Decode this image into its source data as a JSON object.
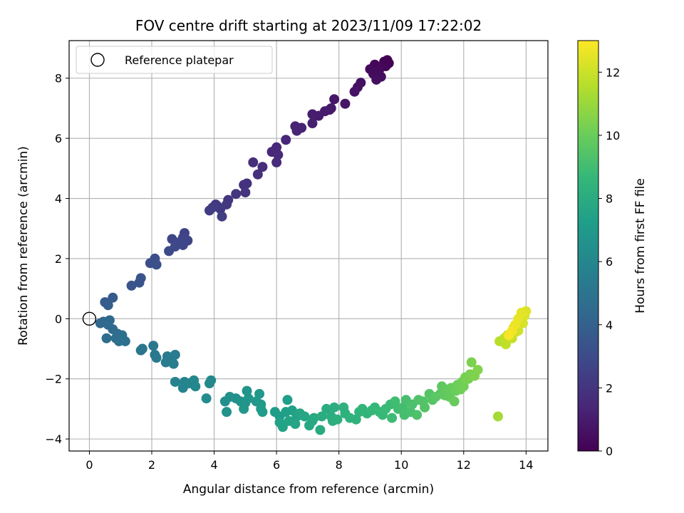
{
  "chart_data": {
    "type": "scatter",
    "title": "FOV centre drift starting at 2023/11/09 17:22:02",
    "xlabel": "Angular distance from reference (arcmin)",
    "ylabel": "Rotation from reference (arcmin)",
    "xlim": [
      -0.65,
      14.7
    ],
    "ylim": [
      -4.4,
      9.25
    ],
    "xticks": [
      0,
      2,
      4,
      6,
      8,
      10,
      12,
      14
    ],
    "yticks": [
      -4,
      -2,
      0,
      2,
      4,
      6,
      8
    ],
    "grid": true,
    "legend": {
      "placement": "top-left",
      "entries": [
        "Reference platepar"
      ]
    },
    "reference_point": {
      "x": 0,
      "y": 0
    },
    "colorbar": {
      "label": "Hours from first FF file",
      "range": [
        0,
        13
      ],
      "ticks": [
        0,
        2,
        4,
        6,
        8,
        10,
        12
      ],
      "colormap": "viridis"
    },
    "colormap_stops": [
      "#440154",
      "#482878",
      "#3e4989",
      "#31688e",
      "#26828e",
      "#1f9e89",
      "#35b779",
      "#6ece58",
      "#b5de2b",
      "#fde725"
    ],
    "points": [
      {
        "x": 9.6,
        "y": 8.5,
        "h": 0.0
      },
      {
        "x": 9.55,
        "y": 8.6,
        "h": 0.05
      },
      {
        "x": 9.45,
        "y": 8.55,
        "h": 0.1
      },
      {
        "x": 9.5,
        "y": 8.4,
        "h": 0.15
      },
      {
        "x": 9.15,
        "y": 8.45,
        "h": 0.2
      },
      {
        "x": 9.3,
        "y": 8.3,
        "h": 0.25
      },
      {
        "x": 9.0,
        "y": 8.3,
        "h": 0.3
      },
      {
        "x": 9.2,
        "y": 8.2,
        "h": 0.35
      },
      {
        "x": 9.1,
        "y": 8.15,
        "h": 0.4
      },
      {
        "x": 9.35,
        "y": 8.05,
        "h": 0.45
      },
      {
        "x": 9.2,
        "y": 7.95,
        "h": 0.5
      },
      {
        "x": 8.7,
        "y": 7.85,
        "h": 0.55
      },
      {
        "x": 8.6,
        "y": 7.7,
        "h": 0.6
      },
      {
        "x": 8.5,
        "y": 7.55,
        "h": 0.65
      },
      {
        "x": 8.2,
        "y": 7.15,
        "h": 0.75
      },
      {
        "x": 7.85,
        "y": 7.3,
        "h": 0.8
      },
      {
        "x": 7.75,
        "y": 7.0,
        "h": 0.85
      },
      {
        "x": 7.7,
        "y": 6.95,
        "h": 0.9
      },
      {
        "x": 7.55,
        "y": 6.9,
        "h": 0.95
      },
      {
        "x": 7.35,
        "y": 6.75,
        "h": 1.0
      },
      {
        "x": 7.15,
        "y": 6.8,
        "h": 1.05
      },
      {
        "x": 7.15,
        "y": 6.5,
        "h": 1.1
      },
      {
        "x": 6.8,
        "y": 6.35,
        "h": 1.2
      },
      {
        "x": 6.6,
        "y": 6.4,
        "h": 1.25
      },
      {
        "x": 6.65,
        "y": 6.25,
        "h": 1.3
      },
      {
        "x": 6.3,
        "y": 5.95,
        "h": 1.4
      },
      {
        "x": 6.0,
        "y": 5.7,
        "h": 1.45
      },
      {
        "x": 5.85,
        "y": 5.55,
        "h": 1.5
      },
      {
        "x": 6.05,
        "y": 5.45,
        "h": 1.55
      },
      {
        "x": 6.0,
        "y": 5.2,
        "h": 1.6
      },
      {
        "x": 5.55,
        "y": 5.05,
        "h": 1.65
      },
      {
        "x": 5.25,
        "y": 5.2,
        "h": 1.7
      },
      {
        "x": 5.4,
        "y": 4.8,
        "h": 1.75
      },
      {
        "x": 5.05,
        "y": 4.5,
        "h": 1.85
      },
      {
        "x": 4.95,
        "y": 4.45,
        "h": 1.9
      },
      {
        "x": 5.0,
        "y": 4.2,
        "h": 1.95
      },
      {
        "x": 4.7,
        "y": 4.15,
        "h": 2.0
      },
      {
        "x": 4.45,
        "y": 3.95,
        "h": 2.05
      },
      {
        "x": 4.4,
        "y": 3.8,
        "h": 2.1
      },
      {
        "x": 4.2,
        "y": 3.65,
        "h": 2.15
      },
      {
        "x": 4.05,
        "y": 3.8,
        "h": 2.2
      },
      {
        "x": 4.1,
        "y": 3.75,
        "h": 2.25
      },
      {
        "x": 3.95,
        "y": 3.7,
        "h": 2.3
      },
      {
        "x": 3.85,
        "y": 3.6,
        "h": 2.35
      },
      {
        "x": 4.25,
        "y": 3.4,
        "h": 2.4
      },
      {
        "x": 3.05,
        "y": 2.85,
        "h": 2.6
      },
      {
        "x": 3.0,
        "y": 2.7,
        "h": 2.65
      },
      {
        "x": 3.15,
        "y": 2.6,
        "h": 2.7
      },
      {
        "x": 2.65,
        "y": 2.65,
        "h": 2.75
      },
      {
        "x": 2.9,
        "y": 2.55,
        "h": 2.8
      },
      {
        "x": 3.0,
        "y": 2.45,
        "h": 2.85
      },
      {
        "x": 2.75,
        "y": 2.4,
        "h": 2.9
      },
      {
        "x": 2.55,
        "y": 2.25,
        "h": 2.95
      },
      {
        "x": 2.1,
        "y": 2.0,
        "h": 3.1
      },
      {
        "x": 1.95,
        "y": 1.85,
        "h": 3.15
      },
      {
        "x": 2.15,
        "y": 1.8,
        "h": 3.2
      },
      {
        "x": 1.65,
        "y": 1.35,
        "h": 3.35
      },
      {
        "x": 1.6,
        "y": 1.2,
        "h": 3.4
      },
      {
        "x": 1.35,
        "y": 1.1,
        "h": 3.45
      },
      {
        "x": 0.75,
        "y": 0.7,
        "h": 3.7
      },
      {
        "x": 0.5,
        "y": 0.55,
        "h": 3.75
      },
      {
        "x": 0.6,
        "y": 0.45,
        "h": 3.8
      },
      {
        "x": 0.35,
        "y": -0.15,
        "h": 4.3
      },
      {
        "x": 0.45,
        "y": -0.1,
        "h": 4.35
      },
      {
        "x": 0.65,
        "y": -0.05,
        "h": 4.4
      },
      {
        "x": 0.6,
        "y": -0.2,
        "h": 4.45
      },
      {
        "x": 0.75,
        "y": -0.35,
        "h": 4.5
      },
      {
        "x": 0.9,
        "y": -0.5,
        "h": 4.55
      },
      {
        "x": 0.55,
        "y": -0.65,
        "h": 4.6
      },
      {
        "x": 0.85,
        "y": -0.65,
        "h": 4.65
      },
      {
        "x": 1.05,
        "y": -0.55,
        "h": 4.7
      },
      {
        "x": 1.0,
        "y": -0.7,
        "h": 4.75
      },
      {
        "x": 1.15,
        "y": -0.75,
        "h": 4.8
      },
      {
        "x": 0.95,
        "y": -0.75,
        "h": 4.85
      },
      {
        "x": 1.65,
        "y": -1.05,
        "h": 5.05
      },
      {
        "x": 1.7,
        "y": -1.0,
        "h": 5.1
      },
      {
        "x": 2.05,
        "y": -0.9,
        "h": 5.15
      },
      {
        "x": 2.1,
        "y": -1.2,
        "h": 5.2
      },
      {
        "x": 2.15,
        "y": -1.3,
        "h": 5.25
      },
      {
        "x": 2.5,
        "y": -1.25,
        "h": 5.3
      },
      {
        "x": 2.6,
        "y": -1.3,
        "h": 5.35
      },
      {
        "x": 2.75,
        "y": -1.2,
        "h": 5.4
      },
      {
        "x": 2.45,
        "y": -1.45,
        "h": 5.45
      },
      {
        "x": 2.7,
        "y": -1.5,
        "h": 5.5
      },
      {
        "x": 2.75,
        "y": -2.1,
        "h": 5.8
      },
      {
        "x": 3.05,
        "y": -2.1,
        "h": 5.85
      },
      {
        "x": 3.0,
        "y": -2.3,
        "h": 5.9
      },
      {
        "x": 3.2,
        "y": -2.15,
        "h": 5.95
      },
      {
        "x": 3.35,
        "y": -2.05,
        "h": 6.0
      },
      {
        "x": 3.4,
        "y": -2.25,
        "h": 6.05
      },
      {
        "x": 3.9,
        "y": -2.05,
        "h": 6.1
      },
      {
        "x": 3.85,
        "y": -2.15,
        "h": 6.15
      },
      {
        "x": 3.75,
        "y": -2.65,
        "h": 6.3
      },
      {
        "x": 4.35,
        "y": -2.75,
        "h": 6.45
      },
      {
        "x": 4.5,
        "y": -2.6,
        "h": 6.5
      },
      {
        "x": 4.7,
        "y": -2.65,
        "h": 6.55
      },
      {
        "x": 4.4,
        "y": -3.1,
        "h": 6.6
      },
      {
        "x": 4.85,
        "y": -2.75,
        "h": 6.65
      },
      {
        "x": 5.0,
        "y": -2.8,
        "h": 6.7
      },
      {
        "x": 5.05,
        "y": -2.4,
        "h": 6.75
      },
      {
        "x": 5.1,
        "y": -2.65,
        "h": 6.8
      },
      {
        "x": 4.95,
        "y": -3.0,
        "h": 6.85
      },
      {
        "x": 5.35,
        "y": -2.75,
        "h": 6.9
      },
      {
        "x": 5.45,
        "y": -2.5,
        "h": 6.95
      },
      {
        "x": 5.5,
        "y": -2.85,
        "h": 7.0
      },
      {
        "x": 5.55,
        "y": -3.1,
        "h": 7.05
      },
      {
        "x": 5.5,
        "y": -3.0,
        "h": 7.1
      },
      {
        "x": 5.95,
        "y": -3.1,
        "h": 7.15
      },
      {
        "x": 6.1,
        "y": -3.25,
        "h": 7.2
      },
      {
        "x": 6.35,
        "y": -2.7,
        "h": 7.25
      },
      {
        "x": 6.3,
        "y": -3.1,
        "h": 7.3
      },
      {
        "x": 6.5,
        "y": -3.05,
        "h": 7.35
      },
      {
        "x": 6.65,
        "y": -3.25,
        "h": 7.4
      },
      {
        "x": 6.1,
        "y": -3.45,
        "h": 7.45
      },
      {
        "x": 6.2,
        "y": -3.6,
        "h": 7.5
      },
      {
        "x": 6.4,
        "y": -3.4,
        "h": 7.55
      },
      {
        "x": 6.6,
        "y": -3.5,
        "h": 7.6
      },
      {
        "x": 6.75,
        "y": -3.15,
        "h": 7.65
      },
      {
        "x": 6.9,
        "y": -3.25,
        "h": 7.7
      },
      {
        "x": 7.05,
        "y": -3.55,
        "h": 7.75
      },
      {
        "x": 7.15,
        "y": -3.4,
        "h": 7.8
      },
      {
        "x": 7.2,
        "y": -3.3,
        "h": 7.85
      },
      {
        "x": 7.4,
        "y": -3.7,
        "h": 7.9
      },
      {
        "x": 7.45,
        "y": -3.25,
        "h": 7.95
      },
      {
        "x": 7.6,
        "y": -3.0,
        "h": 8.0
      },
      {
        "x": 7.75,
        "y": -3.25,
        "h": 8.05
      },
      {
        "x": 7.85,
        "y": -2.95,
        "h": 8.1
      },
      {
        "x": 7.8,
        "y": -3.4,
        "h": 8.15
      },
      {
        "x": 7.95,
        "y": -3.35,
        "h": 8.2
      },
      {
        "x": 8.15,
        "y": -2.95,
        "h": 8.25
      },
      {
        "x": 8.2,
        "y": -3.15,
        "h": 8.3
      },
      {
        "x": 8.35,
        "y": -3.3,
        "h": 8.35
      },
      {
        "x": 8.55,
        "y": -3.35,
        "h": 8.4
      },
      {
        "x": 8.65,
        "y": -3.1,
        "h": 8.45
      },
      {
        "x": 8.75,
        "y": -3.0,
        "h": 8.5
      },
      {
        "x": 8.9,
        "y": -3.15,
        "h": 8.55
      },
      {
        "x": 9.05,
        "y": -3.05,
        "h": 8.6
      },
      {
        "x": 9.15,
        "y": -2.95,
        "h": 8.65
      },
      {
        "x": 9.3,
        "y": -3.1,
        "h": 8.7
      },
      {
        "x": 9.4,
        "y": -3.2,
        "h": 8.75
      },
      {
        "x": 9.5,
        "y": -3.0,
        "h": 8.8
      },
      {
        "x": 9.65,
        "y": -2.85,
        "h": 8.85
      },
      {
        "x": 9.7,
        "y": -3.3,
        "h": 8.9
      },
      {
        "x": 9.8,
        "y": -2.75,
        "h": 8.95
      },
      {
        "x": 9.9,
        "y": -3.0,
        "h": 9.0
      },
      {
        "x": 10.05,
        "y": -2.95,
        "h": 9.05
      },
      {
        "x": 10.1,
        "y": -3.2,
        "h": 9.1
      },
      {
        "x": 10.15,
        "y": -2.7,
        "h": 9.15
      },
      {
        "x": 10.3,
        "y": -3.1,
        "h": 9.2
      },
      {
        "x": 10.35,
        "y": -2.85,
        "h": 9.25
      },
      {
        "x": 10.5,
        "y": -3.2,
        "h": 9.3
      },
      {
        "x": 10.55,
        "y": -2.7,
        "h": 9.35
      },
      {
        "x": 10.7,
        "y": -2.75,
        "h": 9.4
      },
      {
        "x": 10.75,
        "y": -2.95,
        "h": 9.45
      },
      {
        "x": 10.9,
        "y": -2.5,
        "h": 9.5
      },
      {
        "x": 11.0,
        "y": -2.7,
        "h": 9.55
      },
      {
        "x": 11.1,
        "y": -2.6,
        "h": 9.6
      },
      {
        "x": 11.25,
        "y": -2.5,
        "h": 9.65
      },
      {
        "x": 11.3,
        "y": -2.25,
        "h": 9.7
      },
      {
        "x": 11.4,
        "y": -2.55,
        "h": 9.75
      },
      {
        "x": 11.5,
        "y": -2.35,
        "h": 9.8
      },
      {
        "x": 11.55,
        "y": -2.6,
        "h": 9.85
      },
      {
        "x": 11.6,
        "y": -2.3,
        "h": 9.9
      },
      {
        "x": 11.7,
        "y": -2.75,
        "h": 9.95
      },
      {
        "x": 11.75,
        "y": -2.4,
        "h": 10.0
      },
      {
        "x": 11.8,
        "y": -2.2,
        "h": 10.05
      },
      {
        "x": 11.9,
        "y": -2.35,
        "h": 10.1
      },
      {
        "x": 11.95,
        "y": -2.1,
        "h": 10.15
      },
      {
        "x": 12.0,
        "y": -2.25,
        "h": 10.2
      },
      {
        "x": 12.05,
        "y": -1.95,
        "h": 10.25
      },
      {
        "x": 12.15,
        "y": -2.0,
        "h": 10.3
      },
      {
        "x": 12.2,
        "y": -1.85,
        "h": 10.35
      },
      {
        "x": 12.25,
        "y": -1.45,
        "h": 10.4
      },
      {
        "x": 12.35,
        "y": -1.9,
        "h": 10.45
      },
      {
        "x": 12.45,
        "y": -1.7,
        "h": 10.5
      },
      {
        "x": 13.1,
        "y": -3.25,
        "h": 11.2
      },
      {
        "x": 13.15,
        "y": -0.75,
        "h": 11.6
      },
      {
        "x": 13.3,
        "y": -0.65,
        "h": 11.7
      },
      {
        "x": 13.35,
        "y": -0.85,
        "h": 11.75
      },
      {
        "x": 13.4,
        "y": -0.55,
        "h": 11.8
      },
      {
        "x": 13.5,
        "y": -0.5,
        "h": 11.85
      },
      {
        "x": 13.55,
        "y": -0.65,
        "h": 11.9
      },
      {
        "x": 13.6,
        "y": -0.3,
        "h": 11.95
      },
      {
        "x": 13.65,
        "y": -0.45,
        "h": 12.0
      },
      {
        "x": 13.7,
        "y": -0.2,
        "h": 12.05
      },
      {
        "x": 13.75,
        "y": -0.4,
        "h": 12.1
      },
      {
        "x": 13.8,
        "y": -0.1,
        "h": 12.15
      },
      {
        "x": 13.85,
        "y": 0.05,
        "h": 12.2
      },
      {
        "x": 13.9,
        "y": -0.15,
        "h": 12.25
      },
      {
        "x": 13.95,
        "y": 0.1,
        "h": 12.3
      },
      {
        "x": 14.0,
        "y": 0.25,
        "h": 12.35
      },
      {
        "x": 13.85,
        "y": 0.2,
        "h": 12.45
      },
      {
        "x": 13.75,
        "y": 0.0,
        "h": 12.55
      },
      {
        "x": 13.65,
        "y": -0.2,
        "h": 12.65
      },
      {
        "x": 13.55,
        "y": -0.4,
        "h": 12.75
      },
      {
        "x": 13.45,
        "y": -0.55,
        "h": 12.85
      }
    ]
  }
}
